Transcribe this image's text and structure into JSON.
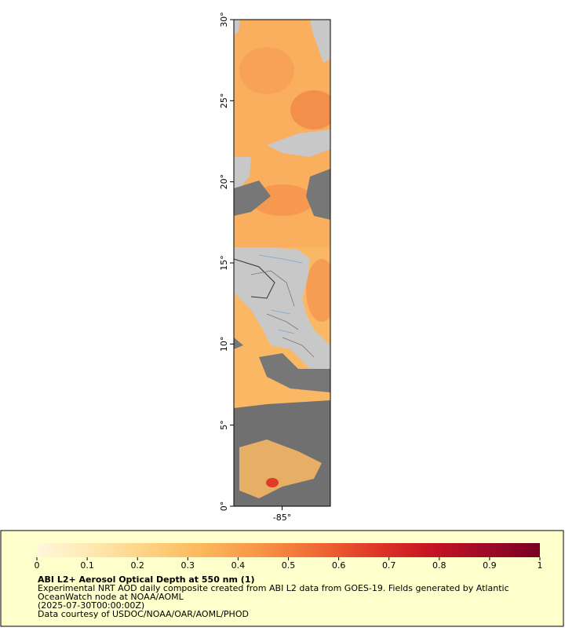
{
  "map": {
    "xlim": [
      -88,
      -82
    ],
    "ylim": [
      0,
      30
    ],
    "xticks": [
      {
        "value": -85,
        "label": "-85°"
      }
    ],
    "yticks": [
      {
        "value": 0,
        "label": "0°"
      },
      {
        "value": 5,
        "label": "5°"
      },
      {
        "value": 10,
        "label": "10°"
      },
      {
        "value": 15,
        "label": "15°"
      },
      {
        "value": 20,
        "label": "20°"
      },
      {
        "value": 25,
        "label": "25°"
      },
      {
        "value": 30,
        "label": "30°"
      }
    ]
  },
  "legend": {
    "title": "ABI L2+ Aerosol Optical Depth at 550 nm (1)",
    "lines": [
      "Experimental NRT AOD daily composite created from ABI L2 data from GOES-19. Fields generated by Atlantic",
      "OceanWatch node at NOAA/AOML",
      "(2025-07-30T00:00:00Z)",
      "Data courtesy of USDOC/NOAA/OAR/AOML/PHOD"
    ],
    "colorbar": {
      "range": [
        0,
        1
      ],
      "ticks": [
        0,
        0.1,
        0.2,
        0.3,
        0.4,
        0.5,
        0.6,
        0.7,
        0.8,
        0.9,
        1
      ],
      "colors": [
        "#fff8dc",
        "#fee8b0",
        "#fdd282",
        "#fcb65a",
        "#f89445",
        "#f06a35",
        "#e03a28",
        "#c81422",
        "#a00a28",
        "#7a0022"
      ]
    }
  }
}
